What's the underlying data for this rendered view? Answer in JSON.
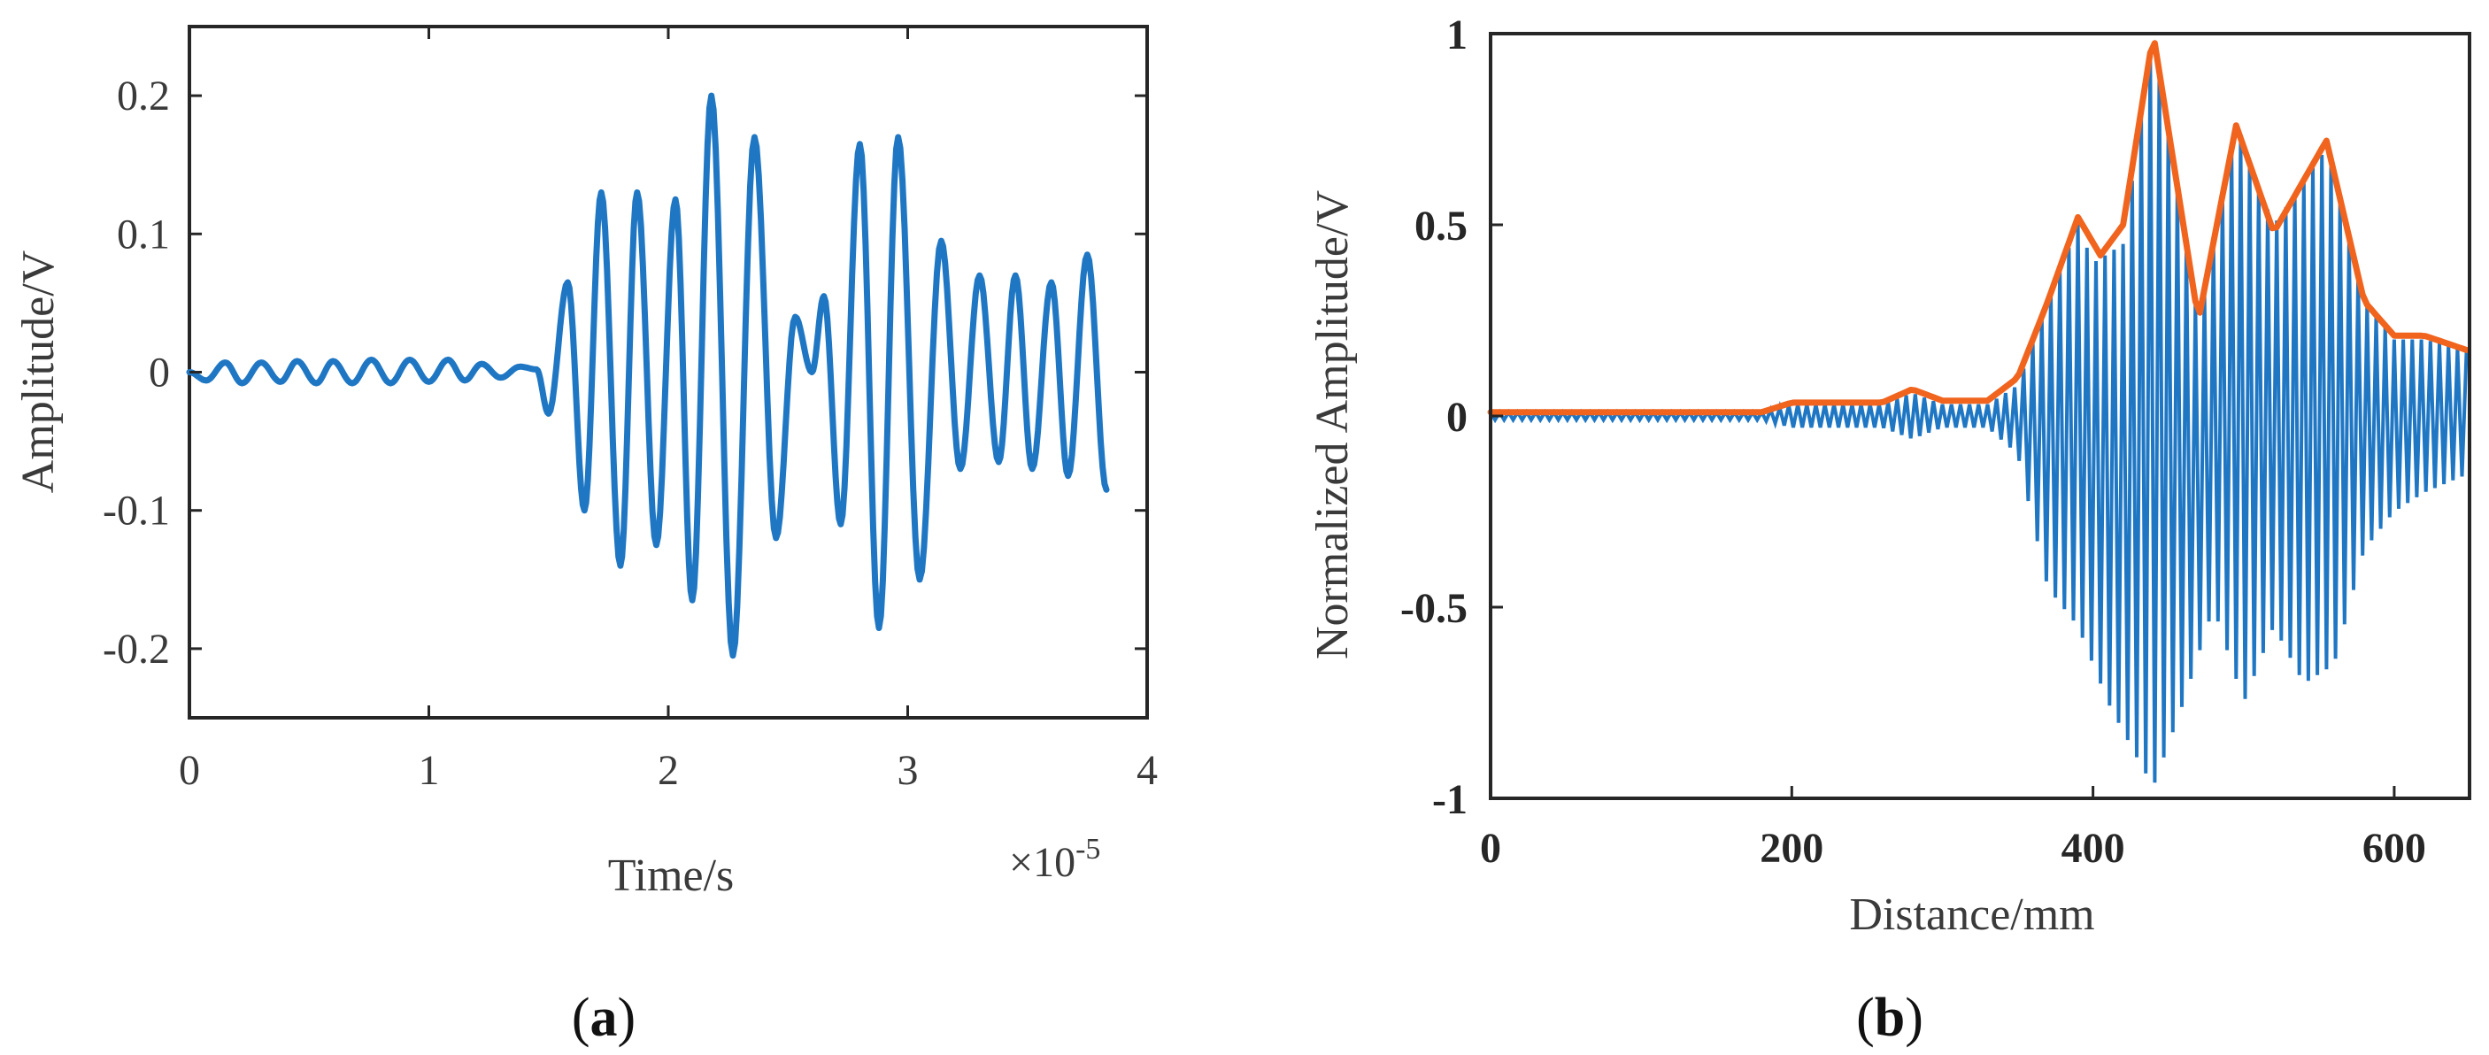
{
  "panels": [
    {
      "label_open": "(",
      "label_letter": "a",
      "label_close": ")"
    },
    {
      "label_open": "(",
      "label_letter": "b",
      "label_close": ")"
    }
  ],
  "chart_data": [
    {
      "type": "line",
      "xlabel": "Time/s",
      "ylabel": "Amplitude/V",
      "x_multiplier_base": "×10",
      "x_multiplier_exp": "-5",
      "xlim": [
        0,
        4
      ],
      "ylim": [
        -0.25,
        0.25
      ],
      "xticks": [
        0,
        1,
        2,
        3,
        4
      ],
      "xtick_labels": [
        "0",
        "1",
        "2",
        "3",
        "4"
      ],
      "yticks": [
        0.2,
        0.1,
        0,
        -0.1,
        -0.2
      ],
      "ytick_labels": [
        "0.2",
        "0.1",
        "0",
        "-0.1",
        "-0.2"
      ],
      "grid": false,
      "series": [
        {
          "color": "#1f77c4",
          "x": [
            0,
            0.07,
            0.15,
            0.22,
            0.3,
            0.38,
            0.45,
            0.53,
            0.6,
            0.68,
            0.76,
            0.84,
            0.92,
            1.0,
            1.08,
            1.15,
            1.22,
            1.3,
            1.38,
            1.45,
            1.5,
            1.58,
            1.65,
            1.72,
            1.8,
            1.87,
            1.95,
            2.03,
            2.1,
            2.18,
            2.27,
            2.36,
            2.45,
            2.53,
            2.6,
            2.65,
            2.72,
            2.8,
            2.88,
            2.96,
            3.05,
            3.14,
            3.22,
            3.3,
            3.38,
            3.45,
            3.52,
            3.6,
            3.67,
            3.75,
            3.83
          ],
          "y": [
            0,
            -0.006,
            0.007,
            -0.008,
            0.007,
            -0.007,
            0.008,
            -0.008,
            0.008,
            -0.008,
            0.009,
            -0.008,
            0.009,
            -0.007,
            0.009,
            -0.006,
            0.006,
            -0.004,
            0.004,
            0.002,
            -0.03,
            0.065,
            -0.1,
            0.13,
            -0.14,
            0.13,
            -0.125,
            0.125,
            -0.165,
            0.2,
            -0.205,
            0.17,
            -0.12,
            0.04,
            0.0,
            0.055,
            -0.11,
            0.165,
            -0.185,
            0.17,
            -0.15,
            0.095,
            -0.07,
            0.07,
            -0.065,
            0.07,
            -0.07,
            0.065,
            -0.075,
            0.085,
            -0.085
          ]
        }
      ]
    },
    {
      "type": "line",
      "xlabel": "Distance/mm",
      "ylabel": "Normalized Amplitude/V",
      "xlim": [
        0,
        650
      ],
      "ylim": [
        -1,
        1
      ],
      "xticks": [
        0,
        200,
        400,
        600
      ],
      "xtick_labels": [
        "0",
        "200",
        "400",
        "600"
      ],
      "yticks": [
        1,
        0.5,
        0,
        -0.5,
        -1
      ],
      "ytick_labels": [
        "1",
        "0.5",
        "0",
        "-0.5",
        "-1"
      ],
      "grid": false,
      "signal_cycle_mm": 6,
      "series": [
        {
          "role": "signal",
          "color": "#1f77c4",
          "upper_x": [
            0,
            180,
            200,
            260,
            280,
            300,
            330,
            350,
            370,
            390,
            400,
            420,
            440,
            470,
            495,
            520,
            555,
            580,
            600,
            620,
            650
          ],
          "upper_y": [
            0.01,
            0.01,
            0.03,
            0.03,
            0.06,
            0.03,
            0.03,
            0.08,
            0.3,
            0.5,
            0.4,
            0.45,
            1.0,
            0.25,
            0.75,
            0.5,
            0.7,
            0.3,
            0.2,
            0.2,
            0.17
          ],
          "lower_x": [
            0,
            180,
            200,
            260,
            280,
            300,
            330,
            350,
            370,
            390,
            410,
            430,
            440,
            460,
            480,
            500,
            520,
            540,
            560,
            580,
            600,
            620,
            650
          ],
          "lower_y": [
            -0.01,
            -0.01,
            -0.03,
            -0.03,
            -0.06,
            -0.03,
            -0.03,
            -0.1,
            -0.45,
            -0.55,
            -0.75,
            -0.9,
            -0.97,
            -0.75,
            -0.5,
            -0.75,
            -0.55,
            -0.7,
            -0.65,
            -0.35,
            -0.25,
            -0.2,
            -0.15
          ]
        },
        {
          "role": "envelope",
          "color": "#f0641e",
          "x": [
            0,
            180,
            200,
            260,
            280,
            300,
            330,
            350,
            370,
            390,
            405,
            420,
            440,
            470,
            495,
            520,
            555,
            580,
            600,
            620,
            650
          ],
          "y": [
            0.01,
            0.01,
            0.035,
            0.035,
            0.07,
            0.04,
            0.04,
            0.1,
            0.3,
            0.52,
            0.42,
            0.5,
            1.0,
            0.25,
            0.76,
            0.48,
            0.72,
            0.3,
            0.21,
            0.21,
            0.17
          ]
        }
      ]
    }
  ]
}
